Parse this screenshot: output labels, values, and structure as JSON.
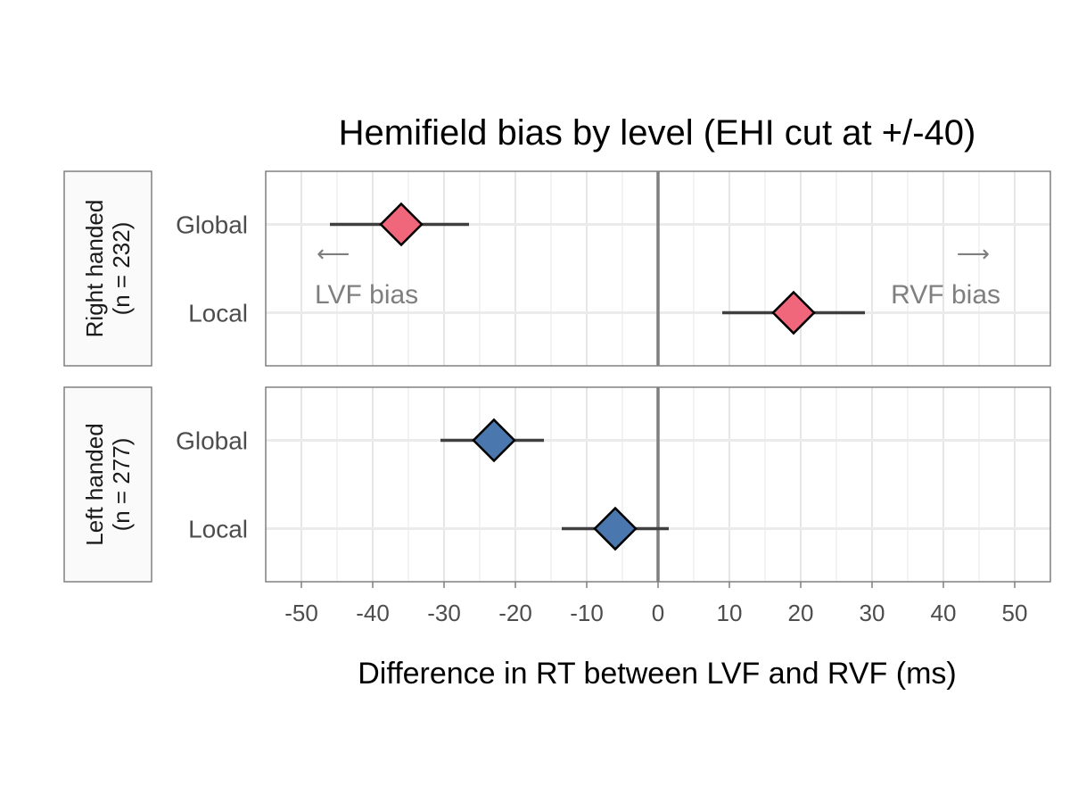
{
  "chart_data": {
    "type": "scatter",
    "title": "Hemifield bias by level (EHI cut at +/-40)",
    "xlabel": "Difference in RT between LVF and RVF (ms)",
    "ylabel": "",
    "xlim": [
      -55,
      55
    ],
    "xticks": [
      -50,
      -40,
      -30,
      -20,
      -10,
      0,
      10,
      20,
      30,
      40,
      50
    ],
    "tick_labels": [
      "-50",
      "-40",
      "-30",
      "-20",
      "-10",
      "0",
      "10",
      "20",
      "30",
      "40",
      "50"
    ],
    "categories": [
      "Global",
      "Local"
    ],
    "grid": true,
    "reference_line_x": 0,
    "annotations": {
      "left_arrow": "⟵",
      "left_text": "LVF bias",
      "right_arrow": "⟶",
      "right_text": "RVF bias"
    },
    "facets": [
      {
        "strip": [
          "Right handed",
          "(n = 232)"
        ],
        "color": "#f0667a",
        "points": [
          {
            "category": "Global",
            "estimate": -36,
            "lower": -46,
            "upper": -26.5
          },
          {
            "category": "Local",
            "estimate": 19,
            "lower": 9,
            "upper": 29
          }
        ]
      },
      {
        "strip": [
          "Left handed",
          "(n = 277)"
        ],
        "color": "#4a77ad",
        "points": [
          {
            "category": "Global",
            "estimate": -23,
            "lower": -30.5,
            "upper": -16
          },
          {
            "category": "Local",
            "estimate": -6,
            "lower": -13.5,
            "upper": 1.5
          }
        ]
      }
    ]
  }
}
